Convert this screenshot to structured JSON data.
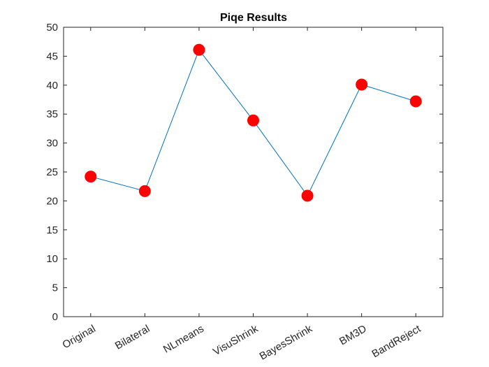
{
  "chart_data": {
    "type": "line",
    "title": "Piqe Results",
    "xlabel": "",
    "ylabel": "",
    "categories": [
      "Original",
      "Bilateral",
      "NLmeans",
      "VisuShrink",
      "BayesShrink",
      "BM3D",
      "BandReject"
    ],
    "values": [
      24.2,
      21.7,
      46.1,
      33.9,
      20.9,
      40.1,
      37.2
    ],
    "ylim": [
      0,
      50
    ],
    "yticks": [
      0,
      5,
      10,
      15,
      20,
      25,
      30,
      35,
      40,
      45,
      50
    ],
    "grid": false,
    "legend": "none",
    "line_color": "#0072BD",
    "marker_color": "#FF0000",
    "marker": "circle"
  }
}
